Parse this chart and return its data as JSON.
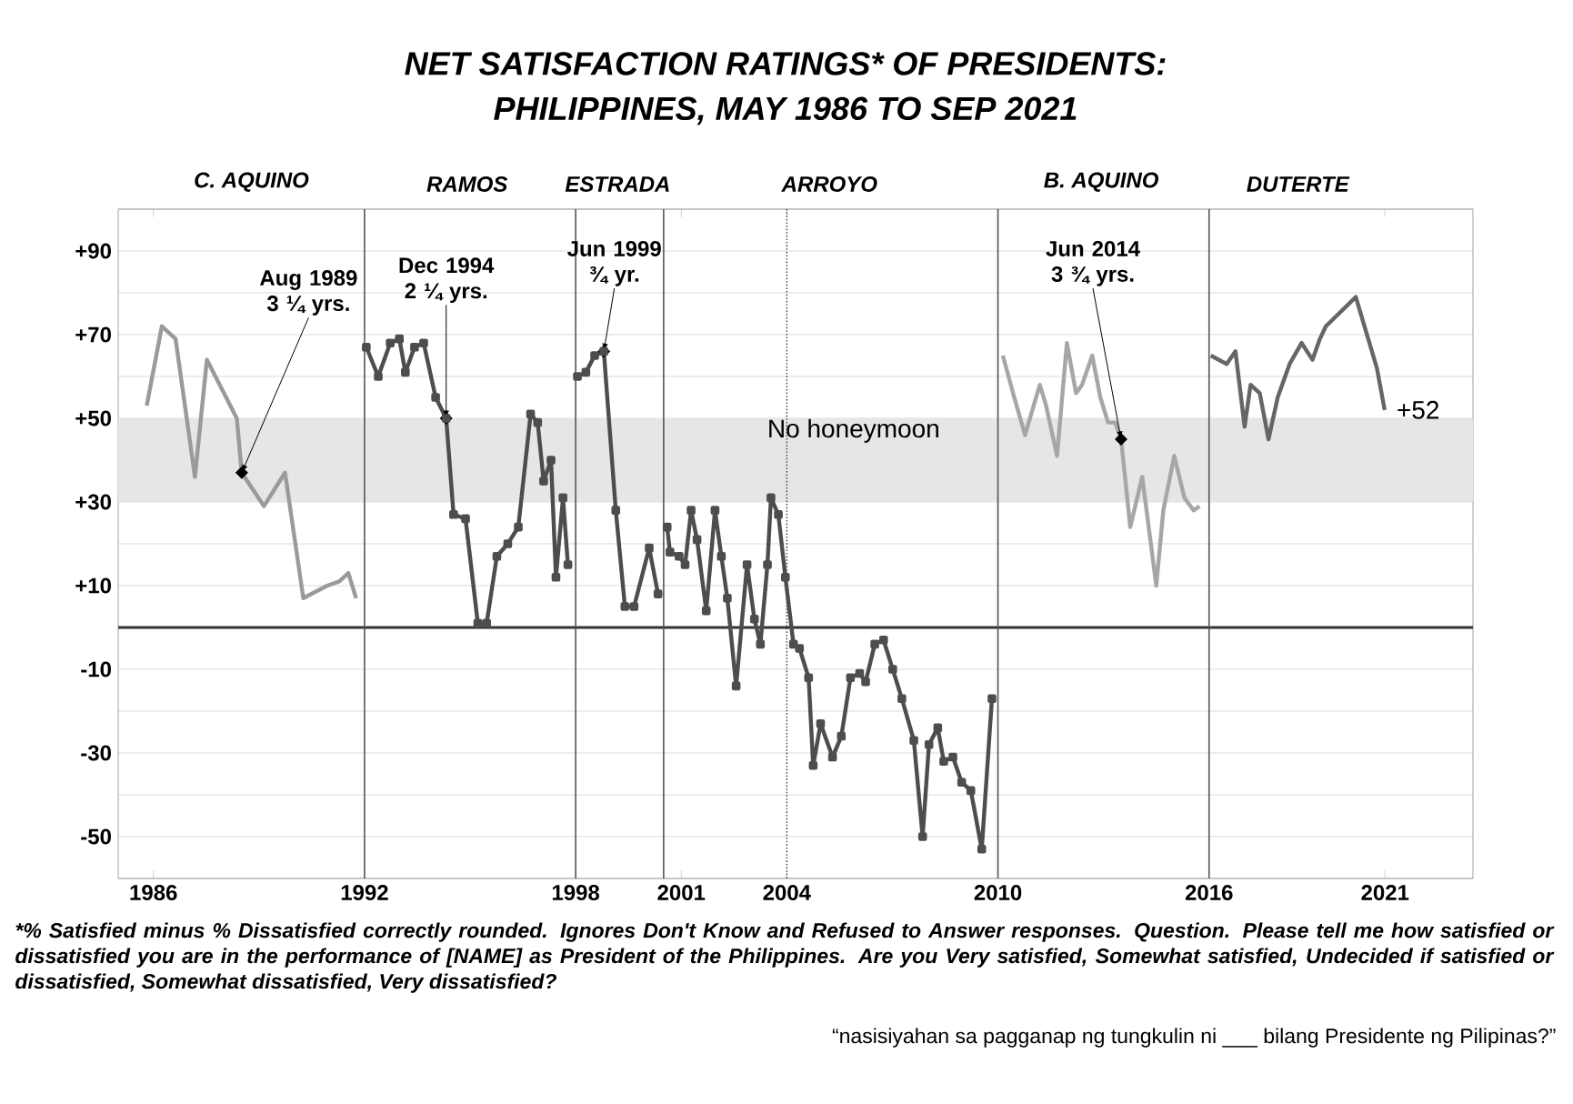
{
  "chart_data": {
    "type": "line",
    "title": "NET SATISFACTION RATINGS* OF PRESIDENTS:",
    "subtitle": "PHILIPPINES, MAY 1986 TO SEP 2021",
    "xlim": [
      1985,
      2023.5
    ],
    "ylim": [
      -60,
      100
    ],
    "xticks": [
      1986,
      1992,
      1998,
      2001,
      2004,
      2010,
      2016,
      2021
    ],
    "yticks": [
      {
        "value": -60,
        "label": null
      },
      {
        "value": -50,
        "label": "-50"
      },
      {
        "value": -40,
        "label": null
      },
      {
        "value": -30,
        "label": "-30"
      },
      {
        "value": -20,
        "label": null
      },
      {
        "value": -10,
        "label": "-10"
      },
      {
        "value": 0,
        "label": null
      },
      {
        "value": 10,
        "label": "+10"
      },
      {
        "value": 20,
        "label": null
      },
      {
        "value": 30,
        "label": "+30"
      },
      {
        "value": 40,
        "label": null
      },
      {
        "value": 50,
        "label": "+50"
      },
      {
        "value": 60,
        "label": null
      },
      {
        "value": 70,
        "label": "+70"
      },
      {
        "value": 80,
        "label": null
      },
      {
        "value": 90,
        "label": "+90"
      },
      {
        "value": 100,
        "label": null
      }
    ],
    "grid": "y",
    "series": [
      {
        "color": "#9a9a9a",
        "x": [
          1985.81,
          1986.24,
          1986.63,
          1987.18,
          1987.52,
          1988.37,
          1988.51,
          1989.14,
          1989.74,
          1990.26,
          1990.94,
          1991.28,
          1991.54,
          1991.76
        ],
        "values": [
          53,
          72,
          69,
          36,
          64,
          50,
          37,
          29,
          37,
          7,
          10,
          11,
          13,
          7
        ]
      },
      {
        "color": "#4d4d4d",
        "marker": "square",
        "x": [
          1992.05,
          1992.39,
          1992.73,
          1992.99,
          1993.16,
          1993.42,
          1993.68,
          1994.02,
          1994.32,
          1994.53,
          1994.87,
          1995.22,
          1995.47,
          1995.76,
          1996.07,
          1996.37,
          1996.72,
          1996.92,
          1997.09,
          1997.3,
          1997.44,
          1997.64,
          1997.78
        ],
        "values": [
          67,
          60,
          68,
          69,
          61,
          67,
          68,
          55,
          50,
          27,
          26,
          1,
          1,
          17,
          20,
          24,
          51,
          49,
          35,
          40,
          12,
          31,
          15
        ]
      },
      {
        "color": "#4d4d4d",
        "marker": "square",
        "x": [
          1998.05,
          1998.29,
          1998.54,
          1998.8,
          1999.14,
          1999.4,
          1999.66,
          2000.09,
          2000.34
        ],
        "values": [
          60,
          61,
          65,
          66,
          28,
          5,
          5,
          19,
          8
        ]
      },
      {
        "color": "#4d4d4d",
        "marker": "square",
        "x": [
          2000.6,
          2000.68,
          2000.94,
          2001.11,
          2001.28,
          2001.45,
          2001.71,
          2001.96,
          2002.14,
          2002.31,
          2002.56,
          2002.87,
          2003.08,
          2003.25,
          2003.45,
          2003.55,
          2003.76,
          2003.96,
          2004.19,
          2004.36,
          2004.62,
          2004.75,
          2004.96,
          2005.3,
          2005.55,
          2005.81,
          2006.07,
          2006.24,
          2006.5,
          2006.75,
          2007.01,
          2007.27,
          2007.61,
          2007.86,
          2008.04,
          2008.29,
          2008.46,
          2008.72,
          2008.97,
          2009.23,
          2009.54,
          2009.83
        ],
        "values": [
          24,
          18,
          17,
          15,
          28,
          21,
          4,
          28,
          17,
          7,
          -14,
          15,
          2,
          -4,
          15,
          31,
          27,
          12,
          -4,
          -5,
          -12,
          -33,
          -23,
          -31,
          -26,
          -12,
          -11,
          -13,
          -4,
          -3,
          -10,
          -17,
          -27,
          -50,
          -28,
          -24,
          -32,
          -31,
          -37,
          -39,
          -53,
          -17
        ]
      },
      {
        "color": "#a6a6a6",
        "x": [
          2010.14,
          2010.43,
          2010.77,
          2011.19,
          2011.37,
          2011.68,
          2011.96,
          2012.22,
          2012.39,
          2012.68,
          2012.91,
          2013.13,
          2013.33,
          2013.5,
          2013.76,
          2014.1,
          2014.5,
          2014.7,
          2015.01,
          2015.3,
          2015.56,
          2015.73
        ],
        "values": [
          65,
          56,
          46,
          58,
          53,
          41,
          68,
          56,
          58,
          65,
          55,
          49,
          49,
          45,
          24,
          36,
          10,
          28,
          41,
          31,
          28,
          29
        ]
      },
      {
        "color": "#666666",
        "x": [
          2016.05,
          2016.5,
          2016.75,
          2017.01,
          2017.18,
          2017.44,
          2017.69,
          2017.95,
          2018.29,
          2018.63,
          2018.94,
          2019.15,
          2019.32,
          2020.17,
          2020.77,
          2020.99
        ],
        "values": [
          65,
          63,
          66,
          48,
          58,
          56,
          45,
          55,
          63,
          68,
          64,
          69,
          72,
          79,
          62,
          52
        ],
        "value_labels": [
          null,
          null,
          null,
          null,
          null,
          null,
          null,
          null,
          null,
          null,
          null,
          null,
          null,
          null,
          null,
          "+52"
        ]
      }
    ],
    "bands": [
      {
        "axis": "y",
        "from": 30,
        "to": 50,
        "color": "#e6e6e6"
      }
    ],
    "ref_lines": [
      {
        "axis": "y",
        "value": 0,
        "color": "#333333"
      },
      {
        "axis": "x",
        "value": 1992,
        "color": "#555555"
      },
      {
        "axis": "x",
        "value": 1998,
        "color": "#555555"
      },
      {
        "axis": "x",
        "value": 2000.5,
        "color": "#555555"
      },
      {
        "axis": "x",
        "value": 2004,
        "color": "#555555",
        "line_style": "dotted"
      },
      {
        "axis": "x",
        "value": 2010,
        "color": "#555555"
      },
      {
        "axis": "x",
        "value": 2016,
        "color": "#555555"
      }
    ],
    "annotations": [
      {
        "text": "Aug 1989 3 ¼ yrs.",
        "x": 1988.51,
        "y": 37
      },
      {
        "text": "Dec 1994 2 ¼ yrs.",
        "x": 1994.32,
        "y": 50
      },
      {
        "text": "Jun 1999 ¾ yr.",
        "x": 1998.8,
        "y": 66
      },
      {
        "text": "Jun 2014 3 ¾ yrs.",
        "x": 2013.5,
        "y": 45
      },
      "C. AQUINO",
      "RAMOS",
      "ESTRADA",
      "ARROYO",
      "B. AQUINO",
      "DUTERTE",
      "No honeymoon",
      "*% Satisfied minus % Dissatisfied correctly rounded. Ignores Don't Know and Refused to Answer responses. Question. Please tell me how satisfied or dissatisfied you are in the performance of [NAME] as President of the Philippines.  Are you Very satisfied, Somewhat satisfied, Undecided if satisfied or dissatisfied, Somewhat dissatisfied, Very dissatisfied?",
      "“nasisiyahan sa pagganap ng tungkulin ni ___ bilang Presidente ng Pilipinas?”"
    ]
  }
}
